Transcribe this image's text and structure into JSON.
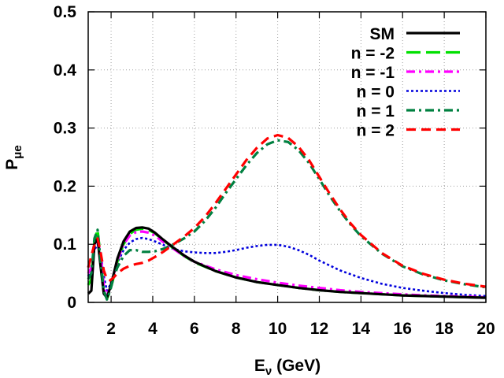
{
  "chart_data": {
    "type": "line",
    "title": "",
    "xlabel": "E",
    "xlabel_sub": "ν",
    "xlabel_unit": " (GeV)",
    "ylabel": "P",
    "ylabel_sub": "μe",
    "xlim": [
      0.9,
      20
    ],
    "ylim": [
      0,
      0.5
    ],
    "xticks": [
      2,
      4,
      6,
      8,
      10,
      12,
      14,
      16,
      18,
      20
    ],
    "yticks": [
      0,
      0.1,
      0.2,
      0.3,
      0.4,
      0.5
    ],
    "ytick_labels": [
      "0",
      "0.1",
      "0.2",
      "0.3",
      "0.4",
      "0.5"
    ],
    "grid": true,
    "legend_position": "top-right",
    "series": [
      {
        "name": "SM",
        "color": "#000000",
        "dash": "solid",
        "x": [
          0.9,
          1.05,
          1.2,
          1.35,
          1.5,
          1.65,
          1.8,
          1.95,
          2.1,
          2.3,
          2.6,
          2.9,
          3.2,
          3.5,
          3.8,
          4.1,
          4.5,
          5,
          5.5,
          6,
          7,
          8,
          9,
          10,
          11,
          12,
          13,
          14,
          15,
          16,
          17,
          18,
          19,
          20
        ],
        "values": [
          0.015,
          0.02,
          0.1,
          0.11,
          0.06,
          0.015,
          0.008,
          0.025,
          0.045,
          0.075,
          0.105,
          0.122,
          0.128,
          0.129,
          0.127,
          0.12,
          0.108,
          0.094,
          0.081,
          0.07,
          0.054,
          0.043,
          0.035,
          0.03,
          0.025,
          0.021,
          0.018,
          0.016,
          0.014,
          0.012,
          0.011,
          0.01,
          0.009,
          0.008
        ]
      },
      {
        "name": "n = -2",
        "color": "#00e000",
        "dash": "long-dash",
        "x": [
          0.9,
          1.05,
          1.2,
          1.35,
          1.5,
          1.65,
          1.8,
          1.95,
          2.1,
          2.3,
          2.6,
          2.9,
          3.2,
          3.5,
          3.8,
          4.1,
          4.5,
          5,
          5.5,
          6,
          7,
          8,
          9,
          10,
          11,
          12,
          13,
          14,
          15,
          16,
          17,
          18,
          19,
          20
        ],
        "values": [
          0.03,
          0.04,
          0.105,
          0.125,
          0.075,
          0.02,
          0.006,
          0.02,
          0.04,
          0.07,
          0.1,
          0.118,
          0.125,
          0.127,
          0.125,
          0.119,
          0.107,
          0.093,
          0.08,
          0.069,
          0.054,
          0.043,
          0.035,
          0.03,
          0.025,
          0.021,
          0.018,
          0.016,
          0.014,
          0.012,
          0.011,
          0.01,
          0.009,
          0.008
        ]
      },
      {
        "name": "n = -1",
        "color": "#ff00ff",
        "dash": "dash-dot",
        "x": [
          0.9,
          1.05,
          1.2,
          1.35,
          1.5,
          1.65,
          1.8,
          1.95,
          2.1,
          2.3,
          2.6,
          2.9,
          3.2,
          3.5,
          3.8,
          4.1,
          4.5,
          5,
          5.5,
          6,
          7,
          8,
          9,
          10,
          11,
          12,
          13,
          14,
          15,
          16,
          17,
          18,
          19,
          20
        ],
        "values": [
          0.05,
          0.06,
          0.095,
          0.11,
          0.08,
          0.03,
          0.012,
          0.025,
          0.045,
          0.072,
          0.1,
          0.115,
          0.121,
          0.122,
          0.12,
          0.115,
          0.104,
          0.092,
          0.08,
          0.07,
          0.057,
          0.047,
          0.04,
          0.034,
          0.029,
          0.025,
          0.021,
          0.018,
          0.016,
          0.014,
          0.012,
          0.011,
          0.01,
          0.009
        ]
      },
      {
        "name": "n = 0",
        "color": "#0000dd",
        "dash": "dotted",
        "x": [
          0.9,
          1.05,
          1.2,
          1.35,
          1.5,
          1.65,
          1.8,
          1.95,
          2.1,
          2.3,
          2.6,
          2.9,
          3.2,
          3.5,
          3.8,
          4.1,
          4.5,
          5,
          5.5,
          6,
          6.5,
          7,
          7.5,
          8,
          8.5,
          9,
          9.5,
          10,
          10.5,
          11,
          11.5,
          12,
          13,
          14,
          15,
          16,
          17,
          18,
          19,
          20
        ],
        "values": [
          0.045,
          0.06,
          0.09,
          0.1,
          0.085,
          0.045,
          0.02,
          0.03,
          0.045,
          0.068,
          0.09,
          0.103,
          0.109,
          0.111,
          0.109,
          0.105,
          0.099,
          0.092,
          0.088,
          0.086,
          0.085,
          0.085,
          0.087,
          0.09,
          0.094,
          0.097,
          0.099,
          0.099,
          0.096,
          0.09,
          0.082,
          0.072,
          0.055,
          0.042,
          0.032,
          0.025,
          0.02,
          0.016,
          0.013,
          0.011
        ]
      },
      {
        "name": "n = 1",
        "color": "#008040",
        "dash": "dash-dot",
        "x": [
          0.9,
          1.05,
          1.2,
          1.35,
          1.5,
          1.65,
          1.8,
          1.95,
          2.1,
          2.3,
          2.6,
          2.9,
          3.2,
          3.5,
          3.8,
          4.1,
          4.5,
          5,
          5.5,
          6,
          6.5,
          7,
          7.5,
          8,
          8.5,
          9,
          9.5,
          10,
          10.5,
          11,
          11.5,
          12,
          12.5,
          13,
          13.5,
          14,
          15,
          16,
          17,
          18,
          19,
          20
        ],
        "values": [
          0.04,
          0.05,
          0.11,
          0.125,
          0.07,
          0.02,
          0.005,
          0.02,
          0.04,
          0.06,
          0.08,
          0.09,
          0.09,
          0.087,
          0.087,
          0.088,
          0.092,
          0.1,
          0.11,
          0.122,
          0.14,
          0.162,
          0.188,
          0.212,
          0.236,
          0.257,
          0.272,
          0.279,
          0.276,
          0.262,
          0.24,
          0.212,
          0.183,
          0.157,
          0.134,
          0.114,
          0.084,
          0.062,
          0.048,
          0.038,
          0.031,
          0.026
        ]
      },
      {
        "name": "n = 2",
        "color": "#ff0000",
        "dash": "dashed",
        "x": [
          0.9,
          1.05,
          1.2,
          1.35,
          1.5,
          1.65,
          1.8,
          1.95,
          2.1,
          2.3,
          2.6,
          2.9,
          3.2,
          3.5,
          3.8,
          4.1,
          4.5,
          5,
          5.5,
          6,
          6.5,
          7,
          7.5,
          8,
          8.5,
          9,
          9.5,
          10,
          10.5,
          11,
          11.5,
          12,
          12.5,
          13,
          13.5,
          14,
          15,
          16,
          17,
          18,
          19,
          20
        ],
        "values": [
          0.06,
          0.08,
          0.1,
          0.11,
          0.085,
          0.055,
          0.04,
          0.038,
          0.042,
          0.05,
          0.058,
          0.063,
          0.066,
          0.068,
          0.072,
          0.078,
          0.087,
          0.1,
          0.113,
          0.128,
          0.147,
          0.17,
          0.195,
          0.22,
          0.245,
          0.266,
          0.282,
          0.288,
          0.283,
          0.268,
          0.245,
          0.216,
          0.187,
          0.16,
          0.136,
          0.116,
          0.085,
          0.063,
          0.049,
          0.039,
          0.032,
          0.027
        ]
      }
    ]
  }
}
